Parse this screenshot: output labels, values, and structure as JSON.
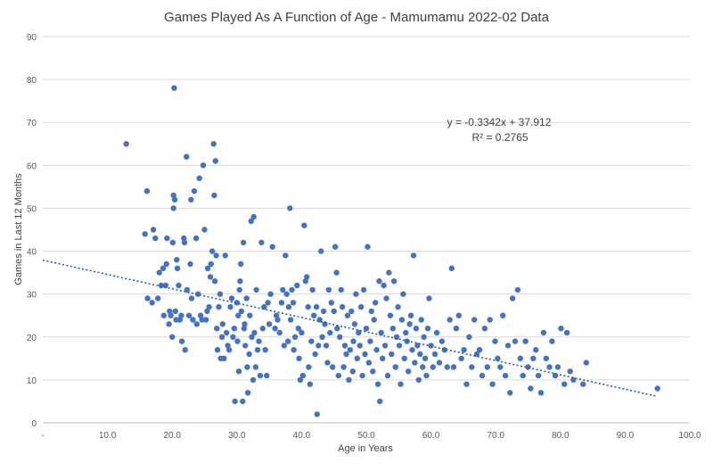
{
  "chart_data": {
    "type": "scatter",
    "title": "Games Played As A Function of Age - Mamumamu 2022-02 Data",
    "xlabel": "Age in Years",
    "ylabel": "Games in Last 12 Months",
    "xlim": [
      0,
      100
    ],
    "ylim": [
      0,
      90
    ],
    "x_ticks": [
      0,
      10,
      20,
      30,
      40,
      50,
      60,
      70,
      80,
      90,
      100
    ],
    "x_tick_labels": [
      "-",
      "10.0",
      "20.0",
      "30.0",
      "40.0",
      "50.0",
      "60.0",
      "70.0",
      "80.0",
      "90.0",
      "100.0"
    ],
    "y_ticks": [
      0,
      10,
      20,
      30,
      40,
      50,
      60,
      70,
      80,
      90
    ],
    "y_tick_labels": [
      "0",
      "10",
      "20",
      "30",
      "40",
      "50",
      "60",
      "70",
      "80",
      "90"
    ],
    "grid": "horizontal",
    "point_color": "#4472C4",
    "trendline": {
      "type": "linear",
      "slope": -0.3342,
      "intercept": 37.912,
      "x_range": [
        0,
        95
      ],
      "equation": "y = -0.3342x + 37.912",
      "r_squared": "R² = 0.2765",
      "color": "#2E5C9A"
    },
    "points": [
      [
        12.9,
        65
      ],
      [
        15.8,
        44
      ],
      [
        16.1,
        54
      ],
      [
        16.2,
        29
      ],
      [
        16.9,
        28
      ],
      [
        17.1,
        45
      ],
      [
        17.4,
        43
      ],
      [
        18.0,
        35
      ],
      [
        17.8,
        29
      ],
      [
        18.3,
        32
      ],
      [
        18.6,
        36
      ],
      [
        18.7,
        25
      ],
      [
        19.0,
        32
      ],
      [
        19.1,
        37
      ],
      [
        19.2,
        43
      ],
      [
        19.5,
        23
      ],
      [
        19.6,
        26
      ],
      [
        19.8,
        25
      ],
      [
        20.0,
        20
      ],
      [
        20.1,
        42
      ],
      [
        20.2,
        50
      ],
      [
        20.2,
        53
      ],
      [
        20.3,
        78
      ],
      [
        20.4,
        52
      ],
      [
        20.5,
        26
      ],
      [
        20.6,
        24
      ],
      [
        20.7,
        38
      ],
      [
        20.8,
        36
      ],
      [
        21.0,
        32
      ],
      [
        21.2,
        24
      ],
      [
        21.4,
        25
      ],
      [
        21.5,
        19
      ],
      [
        21.8,
        43
      ],
      [
        21.9,
        42
      ],
      [
        22.0,
        17
      ],
      [
        22.2,
        62
      ],
      [
        22.3,
        31
      ],
      [
        22.6,
        25
      ],
      [
        22.8,
        37
      ],
      [
        22.9,
        52
      ],
      [
        23.0,
        29
      ],
      [
        23.2,
        24
      ],
      [
        23.4,
        54
      ],
      [
        23.7,
        43
      ],
      [
        23.8,
        23
      ],
      [
        24.0,
        30
      ],
      [
        24.2,
        57
      ],
      [
        24.4,
        25
      ],
      [
        24.6,
        24
      ],
      [
        24.8,
        60
      ],
      [
        25.0,
        45
      ],
      [
        25.2,
        24
      ],
      [
        25.4,
        26
      ],
      [
        25.5,
        36
      ],
      [
        25.7,
        27
      ],
      [
        25.9,
        34
      ],
      [
        26.0,
        37
      ],
      [
        26.2,
        40
      ],
      [
        26.4,
        65
      ],
      [
        26.5,
        53
      ],
      [
        26.6,
        33
      ],
      [
        26.7,
        61
      ],
      [
        26.8,
        39
      ],
      [
        26.9,
        22
      ],
      [
        27.0,
        17
      ],
      [
        27.2,
        27
      ],
      [
        27.4,
        30
      ],
      [
        27.5,
        15
      ],
      [
        27.7,
        20
      ],
      [
        27.8,
        23
      ],
      [
        28.0,
        15
      ],
      [
        28.2,
        39
      ],
      [
        28.4,
        21
      ],
      [
        28.6,
        18
      ],
      [
        28.8,
        17
      ],
      [
        29.0,
        27
      ],
      [
        29.2,
        29
      ],
      [
        29.4,
        20
      ],
      [
        29.6,
        22
      ],
      [
        29.7,
        5
      ],
      [
        30.0,
        28
      ],
      [
        30.1,
        19
      ],
      [
        30.2,
        25
      ],
      [
        30.3,
        12
      ],
      [
        30.4,
        31
      ],
      [
        30.5,
        33
      ],
      [
        30.6,
        37
      ],
      [
        30.7,
        26
      ],
      [
        30.9,
        5
      ],
      [
        31.0,
        42
      ],
      [
        31.1,
        22
      ],
      [
        31.2,
        23
      ],
      [
        31.3,
        18
      ],
      [
        31.5,
        29
      ],
      [
        31.6,
        13
      ],
      [
        31.7,
        7
      ],
      [
        31.9,
        16
      ],
      [
        32.0,
        25
      ],
      [
        32.2,
        47
      ],
      [
        32.3,
        20
      ],
      [
        32.5,
        10
      ],
      [
        32.6,
        48
      ],
      [
        32.7,
        21
      ],
      [
        32.9,
        13
      ],
      [
        33.0,
        31
      ],
      [
        33.2,
        17
      ],
      [
        33.4,
        19
      ],
      [
        33.6,
        11
      ],
      [
        33.8,
        42
      ],
      [
        34.0,
        22
      ],
      [
        34.2,
        27
      ],
      [
        34.4,
        17
      ],
      [
        34.6,
        11
      ],
      [
        34.8,
        28
      ],
      [
        35.0,
        23
      ],
      [
        35.2,
        30
      ],
      [
        35.5,
        41
      ],
      [
        35.9,
        22
      ],
      [
        36.1,
        25
      ],
      [
        36.3,
        24
      ],
      [
        36.6,
        21
      ],
      [
        36.9,
        28
      ],
      [
        37.1,
        31
      ],
      [
        37.3,
        18
      ],
      [
        37.5,
        39
      ],
      [
        37.7,
        30
      ],
      [
        37.9,
        19
      ],
      [
        38.0,
        27
      ],
      [
        38.2,
        50
      ],
      [
        38.3,
        24
      ],
      [
        38.5,
        31
      ],
      [
        38.7,
        28
      ],
      [
        38.8,
        17
      ],
      [
        39.0,
        20
      ],
      [
        39.3,
        32
      ],
      [
        39.5,
        22
      ],
      [
        39.6,
        15
      ],
      [
        39.8,
        10
      ],
      [
        40.0,
        21
      ],
      [
        40.2,
        11
      ],
      [
        40.4,
        46
      ],
      [
        40.6,
        33
      ],
      [
        40.8,
        34
      ],
      [
        41.0,
        27
      ],
      [
        41.1,
        13
      ],
      [
        41.3,
        9
      ],
      [
        41.5,
        19
      ],
      [
        41.7,
        31
      ],
      [
        41.9,
        25
      ],
      [
        42.1,
        16
      ],
      [
        42.3,
        27
      ],
      [
        42.4,
        2
      ],
      [
        42.6,
        18
      ],
      [
        42.8,
        24
      ],
      [
        43.0,
        40
      ],
      [
        43.2,
        20
      ],
      [
        43.4,
        26
      ],
      [
        43.6,
        23
      ],
      [
        43.8,
        18
      ],
      [
        44.0,
        14
      ],
      [
        44.2,
        31
      ],
      [
        44.4,
        21
      ],
      [
        44.6,
        28
      ],
      [
        44.8,
        13
      ],
      [
        45.0,
        26
      ],
      [
        45.2,
        41
      ],
      [
        45.4,
        35
      ],
      [
        45.5,
        22
      ],
      [
        45.7,
        11
      ],
      [
        45.9,
        20
      ],
      [
        46.1,
        31
      ],
      [
        46.3,
        27
      ],
      [
        46.5,
        13
      ],
      [
        46.7,
        18
      ],
      [
        46.9,
        16
      ],
      [
        47.1,
        25
      ],
      [
        47.3,
        10
      ],
      [
        47.5,
        17
      ],
      [
        47.7,
        26
      ],
      [
        47.9,
        12
      ],
      [
        48.0,
        19
      ],
      [
        48.2,
        23
      ],
      [
        48.4,
        30
      ],
      [
        48.6,
        15
      ],
      [
        48.8,
        21
      ],
      [
        49.0,
        18
      ],
      [
        49.2,
        27
      ],
      [
        49.4,
        11
      ],
      [
        49.6,
        31
      ],
      [
        49.8,
        16
      ],
      [
        50.0,
        22
      ],
      [
        50.2,
        41
      ],
      [
        50.4,
        14
      ],
      [
        50.6,
        19
      ],
      [
        50.8,
        26
      ],
      [
        51.0,
        12
      ],
      [
        51.2,
        24
      ],
      [
        51.4,
        28
      ],
      [
        51.6,
        17
      ],
      [
        51.8,
        9
      ],
      [
        52.0,
        33
      ],
      [
        52.1,
        5
      ],
      [
        52.3,
        21
      ],
      [
        52.5,
        15
      ],
      [
        52.7,
        32
      ],
      [
        52.9,
        18
      ],
      [
        53.1,
        29
      ],
      [
        53.3,
        11
      ],
      [
        53.5,
        35
      ],
      [
        53.7,
        25
      ],
      [
        53.9,
        16
      ],
      [
        54.1,
        22
      ],
      [
        54.3,
        33
      ],
      [
        54.5,
        13
      ],
      [
        54.7,
        20
      ],
      [
        54.9,
        27
      ],
      [
        55.1,
        18
      ],
      [
        55.3,
        9
      ],
      [
        55.5,
        24
      ],
      [
        55.7,
        30
      ],
      [
        55.9,
        15
      ],
      [
        56.1,
        21
      ],
      [
        56.3,
        19
      ],
      [
        56.5,
        12
      ],
      [
        56.7,
        23
      ],
      [
        56.9,
        25
      ],
      [
        57.1,
        17
      ],
      [
        57.3,
        39
      ],
      [
        57.5,
        14
      ],
      [
        57.7,
        22
      ],
      [
        57.9,
        18
      ],
      [
        58.1,
        10
      ],
      [
        58.3,
        16
      ],
      [
        58.5,
        24
      ],
      [
        58.7,
        13
      ],
      [
        58.9,
        20
      ],
      [
        59.1,
        15
      ],
      [
        59.3,
        11
      ],
      [
        59.5,
        22
      ],
      [
        59.7,
        29
      ],
      [
        60.0,
        18
      ],
      [
        60.3,
        13
      ],
      [
        60.6,
        16
      ],
      [
        60.9,
        21
      ],
      [
        61.3,
        14
      ],
      [
        61.7,
        19
      ],
      [
        62.1,
        17
      ],
      [
        62.5,
        13
      ],
      [
        62.9,
        24
      ],
      [
        63.2,
        36
      ],
      [
        63.5,
        13
      ],
      [
        63.9,
        22
      ],
      [
        64.3,
        25
      ],
      [
        64.7,
        15
      ],
      [
        65.1,
        17
      ],
      [
        65.5,
        9
      ],
      [
        65.9,
        20
      ],
      [
        66.3,
        13
      ],
      [
        66.7,
        24
      ],
      [
        67.1,
        16
      ],
      [
        67.5,
        17
      ],
      [
        67.9,
        11
      ],
      [
        68.3,
        22
      ],
      [
        68.7,
        13
      ],
      [
        69.1,
        24
      ],
      [
        69.5,
        9
      ],
      [
        69.9,
        19
      ],
      [
        70.3,
        15
      ],
      [
        70.7,
        13
      ],
      [
        71.1,
        25
      ],
      [
        71.5,
        11
      ],
      [
        71.9,
        18
      ],
      [
        72.2,
        7
      ],
      [
        72.6,
        29
      ],
      [
        73.0,
        19
      ],
      [
        73.4,
        31
      ],
      [
        73.8,
        15
      ],
      [
        74.2,
        11
      ],
      [
        74.6,
        19
      ],
      [
        75.0,
        13
      ],
      [
        75.4,
        8
      ],
      [
        75.8,
        15
      ],
      [
        76.2,
        17
      ],
      [
        76.6,
        11
      ],
      [
        77.0,
        7
      ],
      [
        77.4,
        21
      ],
      [
        77.8,
        15
      ],
      [
        78.3,
        13
      ],
      [
        78.7,
        19
      ],
      [
        79.2,
        11
      ],
      [
        79.6,
        13
      ],
      [
        80.1,
        22
      ],
      [
        80.6,
        9
      ],
      [
        81.0,
        21
      ],
      [
        81.5,
        12
      ],
      [
        82.0,
        10
      ],
      [
        83.5,
        9
      ],
      [
        84.0,
        14
      ],
      [
        95.0,
        8
      ]
    ]
  }
}
